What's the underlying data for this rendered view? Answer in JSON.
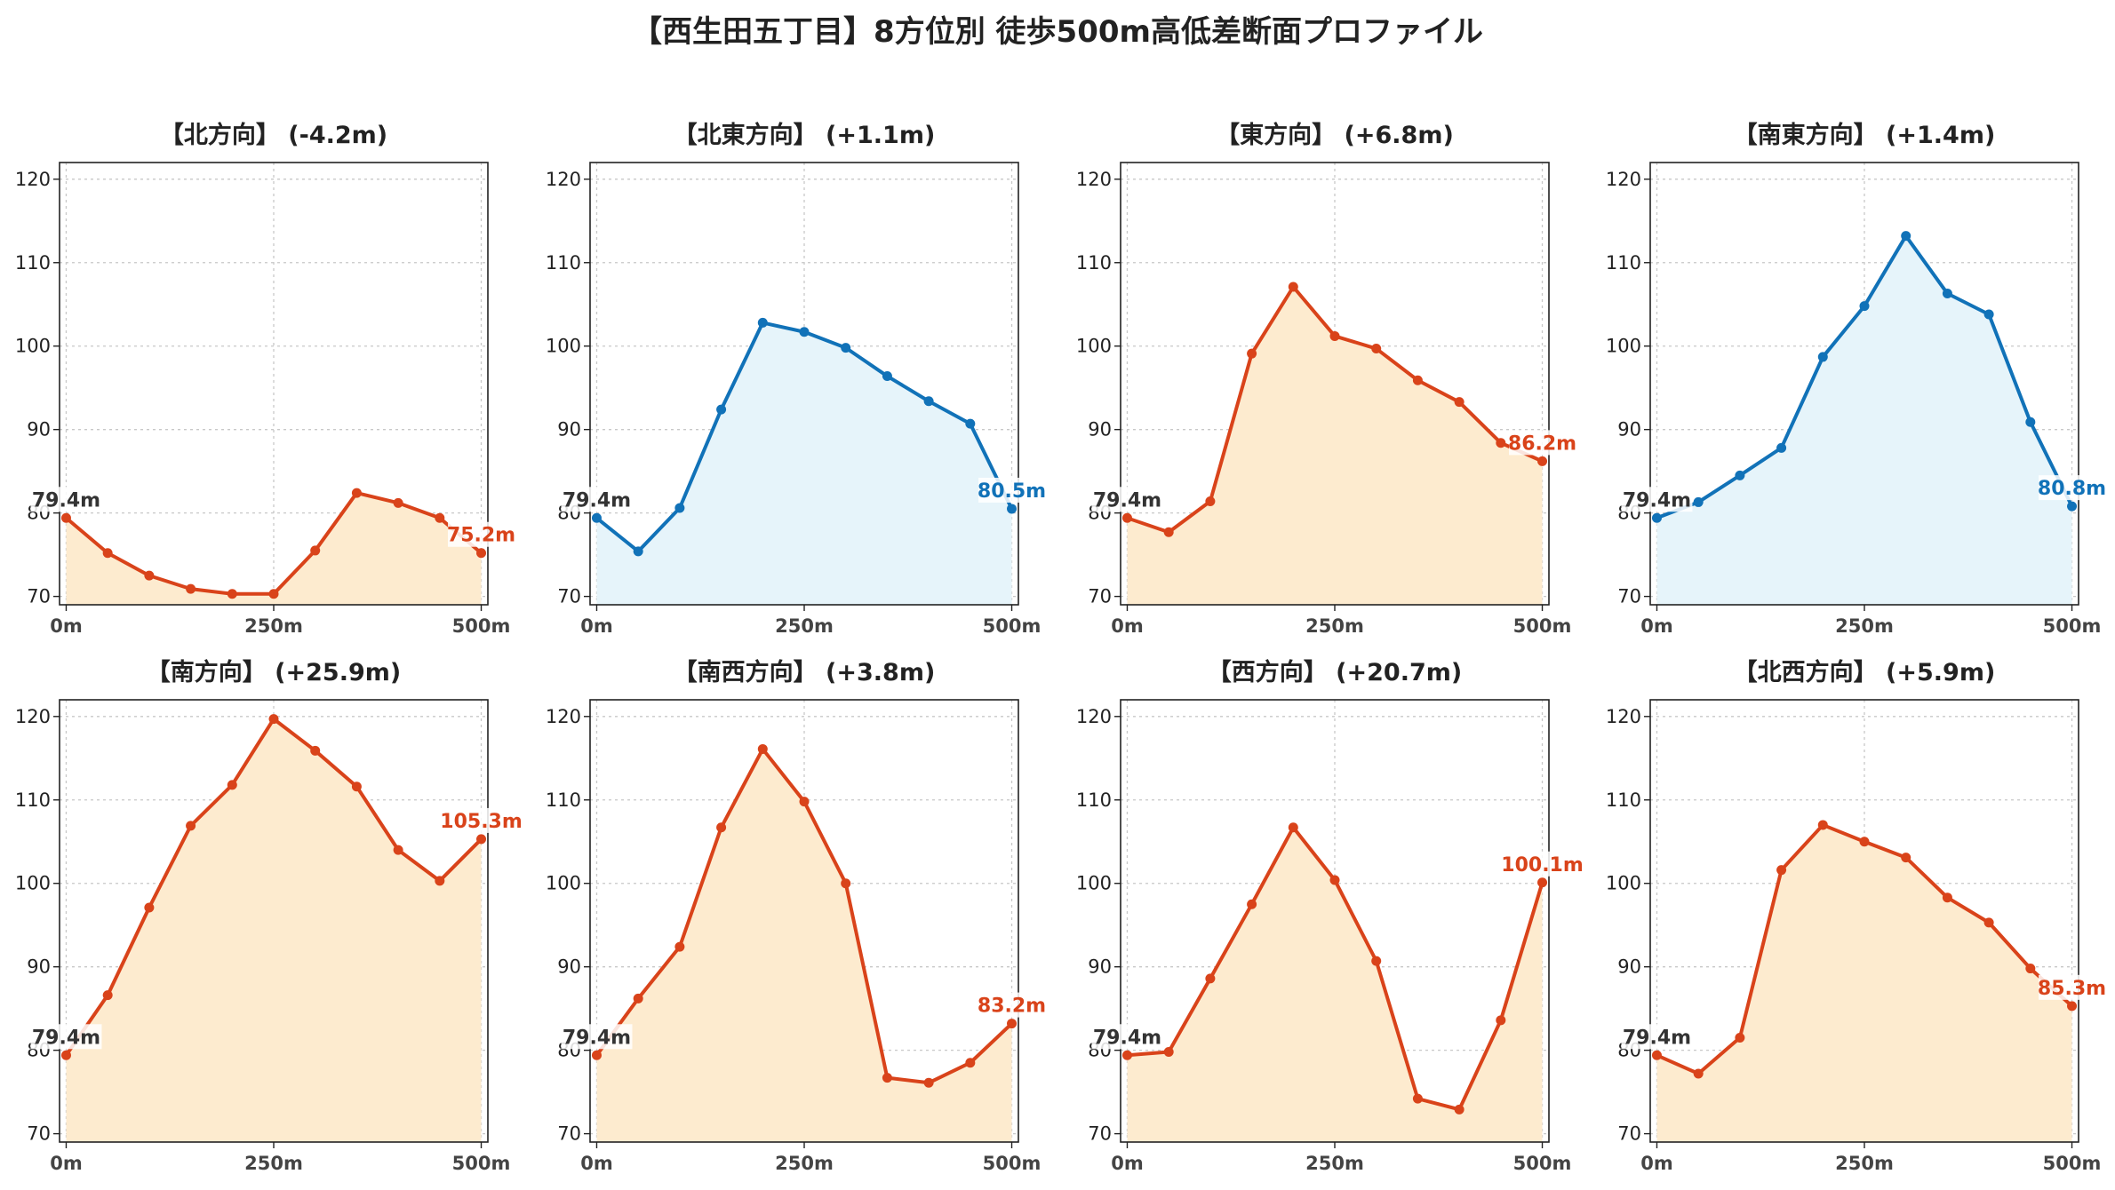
{
  "title": "【西生田五丁目】8方位別 徒歩500m高低差断面プロファイル",
  "colors": {
    "down": "#d9431a",
    "down_fill": "#fdebcf",
    "up": "#1172b8",
    "up_fill": "#e6f4fa",
    "start_label": "#333333",
    "grid": "#c8c8c8"
  },
  "chart_data": [
    {
      "type": "line",
      "title": "【北方向】 (-4.2m)",
      "x": [
        0,
        50,
        100,
        150,
        200,
        250,
        300,
        350,
        400,
        450,
        500
      ],
      "values": [
        79.4,
        75.2,
        72.5,
        70.9,
        70.3,
        70.3,
        75.5,
        82.4,
        81.2,
        79.4,
        75.2
      ],
      "start_label": "79.4m",
      "end_label": "75.2m",
      "color": "down",
      "xticks": [
        "0m",
        "250m",
        "500m"
      ],
      "yticks": [
        70,
        80,
        90,
        100,
        110,
        120
      ],
      "ylim": [
        69,
        122
      ],
      "xlim": [
        -8,
        508
      ],
      "grid": true
    },
    {
      "type": "line",
      "title": "【北東方向】 (+1.1m)",
      "x": [
        0,
        50,
        100,
        150,
        200,
        250,
        300,
        350,
        400,
        450,
        500
      ],
      "values": [
        79.4,
        75.4,
        80.6,
        92.4,
        102.8,
        101.7,
        99.8,
        96.4,
        93.4,
        90.7,
        80.5
      ],
      "start_label": "79.4m",
      "end_label": "80.5m",
      "color": "up",
      "xticks": [
        "0m",
        "250m",
        "500m"
      ],
      "yticks": [
        70,
        80,
        90,
        100,
        110,
        120
      ],
      "ylim": [
        69,
        122
      ],
      "xlim": [
        -8,
        508
      ],
      "grid": true
    },
    {
      "type": "line",
      "title": "【東方向】 (+6.8m)",
      "x": [
        0,
        50,
        100,
        150,
        200,
        250,
        300,
        350,
        400,
        450,
        500
      ],
      "values": [
        79.4,
        77.7,
        81.4,
        99.1,
        107.1,
        101.2,
        99.7,
        95.9,
        93.3,
        88.4,
        86.2
      ],
      "start_label": "79.4m",
      "end_label": "86.2m",
      "color": "down",
      "xticks": [
        "0m",
        "250m",
        "500m"
      ],
      "yticks": [
        70,
        80,
        90,
        100,
        110,
        120
      ],
      "ylim": [
        69,
        122
      ],
      "xlim": [
        -8,
        508
      ],
      "grid": true
    },
    {
      "type": "line",
      "title": "【南東方向】 (+1.4m)",
      "x": [
        0,
        50,
        100,
        150,
        200,
        250,
        300,
        350,
        400,
        450,
        500
      ],
      "values": [
        79.4,
        81.3,
        84.5,
        87.8,
        98.7,
        104.8,
        113.2,
        106.3,
        103.8,
        90.9,
        80.8
      ],
      "start_label": "79.4m",
      "end_label": "80.8m",
      "color": "up",
      "xticks": [
        "0m",
        "250m",
        "500m"
      ],
      "yticks": [
        70,
        80,
        90,
        100,
        110,
        120
      ],
      "ylim": [
        69,
        122
      ],
      "xlim": [
        -8,
        508
      ],
      "grid": true
    },
    {
      "type": "line",
      "title": "【南方向】 (+25.9m)",
      "x": [
        0,
        50,
        100,
        150,
        200,
        250,
        300,
        350,
        400,
        450,
        500
      ],
      "values": [
        79.4,
        86.6,
        97.1,
        106.9,
        111.8,
        119.7,
        115.9,
        111.6,
        104.0,
        100.3,
        105.3
      ],
      "start_label": "79.4m",
      "end_label": "105.3m",
      "color": "down",
      "xticks": [
        "0m",
        "250m",
        "500m"
      ],
      "yticks": [
        70,
        80,
        90,
        100,
        110,
        120
      ],
      "ylim": [
        69,
        122
      ],
      "xlim": [
        -8,
        508
      ],
      "grid": true
    },
    {
      "type": "line",
      "title": "【南西方向】 (+3.8m)",
      "x": [
        0,
        50,
        100,
        150,
        200,
        250,
        300,
        350,
        400,
        450,
        500
      ],
      "values": [
        79.4,
        86.2,
        92.4,
        106.7,
        116.1,
        109.8,
        100.0,
        76.7,
        76.1,
        78.5,
        83.2
      ],
      "start_label": "79.4m",
      "end_label": "83.2m",
      "color": "down",
      "xticks": [
        "0m",
        "250m",
        "500m"
      ],
      "yticks": [
        70,
        80,
        90,
        100,
        110,
        120
      ],
      "ylim": [
        69,
        122
      ],
      "xlim": [
        -8,
        508
      ],
      "grid": true
    },
    {
      "type": "line",
      "title": "【西方向】 (+20.7m)",
      "x": [
        0,
        50,
        100,
        150,
        200,
        250,
        300,
        350,
        400,
        450,
        500
      ],
      "values": [
        79.4,
        79.8,
        88.6,
        97.5,
        106.7,
        100.4,
        90.7,
        74.2,
        72.9,
        83.6,
        100.1
      ],
      "start_label": "79.4m",
      "end_label": "100.1m",
      "color": "down",
      "xticks": [
        "0m",
        "250m",
        "500m"
      ],
      "yticks": [
        70,
        80,
        90,
        100,
        110,
        120
      ],
      "ylim": [
        69,
        122
      ],
      "xlim": [
        -8,
        508
      ],
      "grid": true
    },
    {
      "type": "line",
      "title": "【北西方向】 (+5.9m)",
      "x": [
        0,
        50,
        100,
        150,
        200,
        250,
        300,
        350,
        400,
        450,
        500
      ],
      "values": [
        79.4,
        77.2,
        81.5,
        101.6,
        107.0,
        105.0,
        103.1,
        98.3,
        95.3,
        89.8,
        85.3
      ],
      "start_label": "79.4m",
      "end_label": "85.3m",
      "color": "down",
      "xticks": [
        "0m",
        "250m",
        "500m"
      ],
      "yticks": [
        70,
        80,
        90,
        100,
        110,
        120
      ],
      "ylim": [
        69,
        122
      ],
      "xlim": [
        -8,
        508
      ],
      "grid": true
    }
  ]
}
